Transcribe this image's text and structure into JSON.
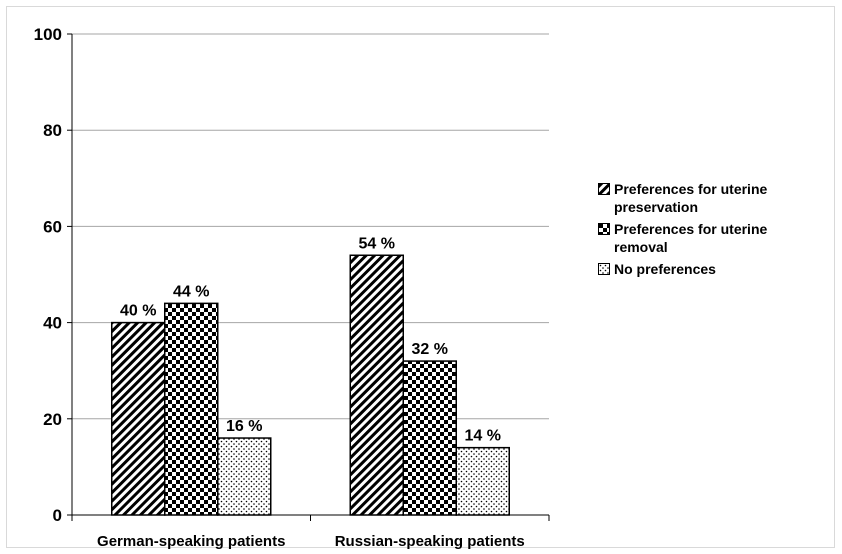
{
  "chart_data": {
    "type": "bar",
    "categories": [
      "German-speaking patients",
      "Russian-speaking patients"
    ],
    "series": [
      {
        "name": "Preferences for uterine preservation",
        "values": [
          40,
          54
        ],
        "labels": [
          "40 %",
          "54 %"
        ],
        "pattern": "diagonal-hatch"
      },
      {
        "name": "Preferences for uterine removal",
        "values": [
          44,
          32
        ],
        "labels": [
          "44 %",
          "32 %"
        ],
        "pattern": "checkerboard"
      },
      {
        "name": "No preferences",
        "values": [
          16,
          14
        ],
        "labels": [
          "16 %",
          "14 %"
        ],
        "pattern": "dots"
      }
    ],
    "yticks": [
      "0",
      "20",
      "40",
      "60",
      "80",
      "100"
    ],
    "ylim": [
      0,
      100
    ],
    "title": "",
    "xlabel": "",
    "ylabel": "",
    "grid": true,
    "legend_position": "right"
  }
}
